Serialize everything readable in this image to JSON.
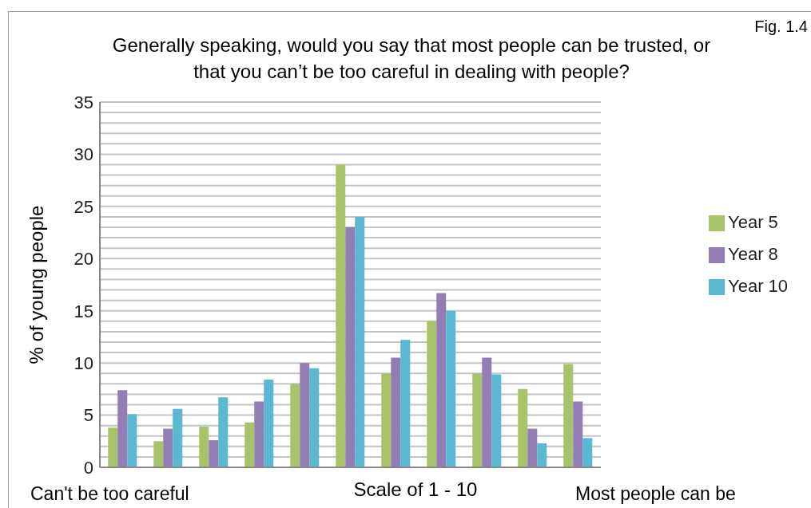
{
  "chart_data": {
    "type": "bar",
    "title": "Generally speaking, would you say that most people can be trusted, or that you can’t be too careful in dealing with people?",
    "xlabel": "Scale of 1 - 10",
    "ylabel": "% of young people",
    "annotations": [
      "Fig. 1.4",
      "Can't be too careful",
      "Most people can be"
    ],
    "categories": [
      null,
      null,
      null,
      null,
      null,
      null,
      null,
      null,
      null,
      null,
      null
    ],
    "series": [
      {
        "name": "Year 5",
        "color": "#a9c36a",
        "values": [
          3.8,
          2.5,
          3.9,
          4.3,
          8.0,
          29.0,
          9.0,
          14.0,
          9.0,
          7.5,
          9.9
        ]
      },
      {
        "name": "Year 8",
        "color": "#927db4",
        "values": [
          7.4,
          3.7,
          2.6,
          6.3,
          10.0,
          23.0,
          10.5,
          16.7,
          10.5,
          3.7,
          6.3
        ]
      },
      {
        "name": "Year 10",
        "color": "#5bb8d0",
        "values": [
          5.1,
          5.6,
          6.7,
          8.4,
          9.5,
          24.0,
          12.2,
          15.0,
          8.9,
          2.3,
          2.8
        ]
      }
    ],
    "ylim": [
      0,
      35
    ],
    "yticks": [
      0,
      {
        "value": 1,
        "label": null
      },
      {
        "value": 2,
        "label": null
      },
      {
        "value": 3,
        "label": null
      },
      {
        "value": 4,
        "label": null
      },
      5,
      {
        "value": 6,
        "label": null
      },
      {
        "value": 7,
        "label": null
      },
      {
        "value": 8,
        "label": null
      },
      {
        "value": 9,
        "label": null
      },
      10,
      {
        "value": 11,
        "label": null
      },
      {
        "value": 12,
        "label": null
      },
      {
        "value": 13,
        "label": null
      },
      {
        "value": 14,
        "label": null
      },
      15,
      {
        "value": 16,
        "label": null
      },
      {
        "value": 17,
        "label": null
      },
      {
        "value": 18,
        "label": null
      },
      {
        "value": 19,
        "label": null
      },
      20,
      {
        "value": 21,
        "label": null
      },
      {
        "value": 22,
        "label": null
      },
      {
        "value": 23,
        "label": null
      },
      {
        "value": 24,
        "label": null
      },
      25,
      {
        "value": 26,
        "label": null
      },
      {
        "value": 27,
        "label": null
      },
      {
        "value": 28,
        "label": null
      },
      {
        "value": 29,
        "label": null
      },
      30,
      {
        "value": 31,
        "label": null
      },
      {
        "value": 32,
        "label": null
      },
      {
        "value": 33,
        "label": null
      },
      {
        "value": 34,
        "label": null
      },
      35
    ],
    "grid": "y",
    "legend": "right"
  }
}
